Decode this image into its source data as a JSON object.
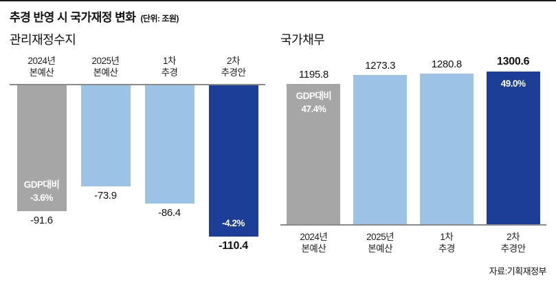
{
  "title": {
    "main": "추경 반영 시 국가재정 변화",
    "unit": "(단위: 조원)"
  },
  "source": "자료:기획재정부",
  "colors": {
    "gray": "#a6a6a6",
    "light_blue": "#9cc2e5",
    "dark_blue": "#1c3e96"
  },
  "chart_data": [
    {
      "type": "bar",
      "title": "관리재정수지",
      "orientation": "down",
      "categories": [
        "2024년\n본예산",
        "2025년\n본예산",
        "1차\n추경",
        "2차\n추경안"
      ],
      "values": [
        -91.6,
        -73.9,
        -86.4,
        -110.4
      ],
      "value_labels": [
        "-91.6",
        "-73.9",
        "-86.4",
        "-110.4"
      ],
      "bar_annotations": [
        "GDP대비\n-3.6%",
        "",
        "",
        "-4.2%"
      ],
      "bar_colors": [
        "gray",
        "light_blue",
        "light_blue",
        "dark_blue"
      ],
      "ylim": [
        -110.4,
        0
      ],
      "grid": false,
      "legend": false
    },
    {
      "type": "bar",
      "title": "국가채무",
      "orientation": "up",
      "categories": [
        "2024년\n본예산",
        "2025년\n본예산",
        "1차\n추경",
        "2차\n추경안"
      ],
      "values": [
        1195.8,
        1273.3,
        1280.8,
        1300.6
      ],
      "value_labels": [
        "1195.8",
        "1273.3",
        "1280.8",
        "1300.6"
      ],
      "bar_annotations": [
        "GDP대비\n47.4%",
        "",
        "",
        "49.0%"
      ],
      "bar_colors": [
        "gray",
        "light_blue",
        "light_blue",
        "dark_blue"
      ],
      "ylim": [
        0,
        1300.6
      ],
      "grid": false,
      "legend": false
    }
  ]
}
